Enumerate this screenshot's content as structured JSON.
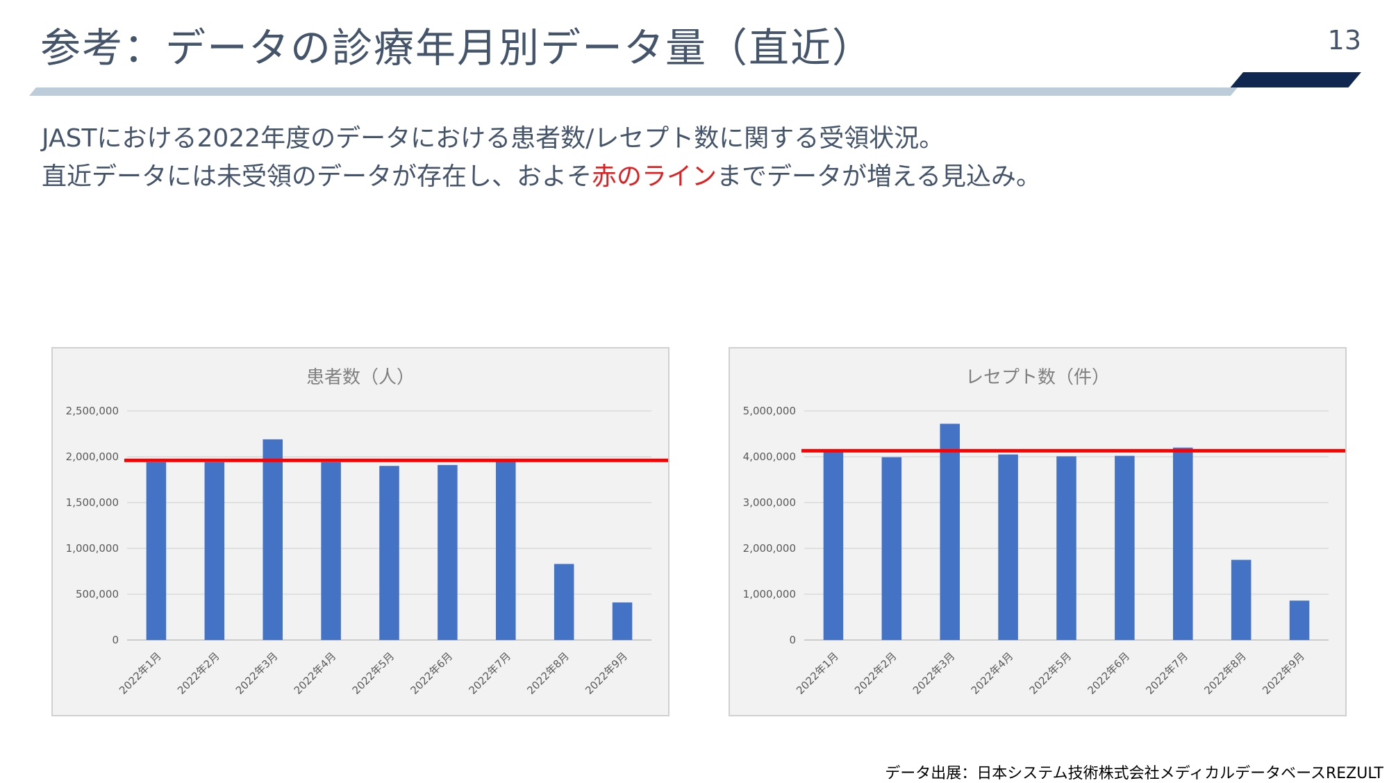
{
  "slide": {
    "title": "参考：データの診療年月別データ量（直近）",
    "page_number": "13",
    "line1": "JASTにおける2022年度のデータにおける患者数/レセプト数に関する受領状況。",
    "line2_before": "直近データには未受領のデータが存在し、およそ",
    "line2_highlight": "赤のライン",
    "line2_after": "までデータが増える見込み。",
    "source": "データ出展：日本システム技術株式会社メディカルデータベースREZULT"
  },
  "colors": {
    "bar": "#4472C4",
    "reference_line": "#FF0000",
    "highlight_text": "#E02020",
    "panel_bg": "#F2F2F2"
  },
  "chart_data": [
    {
      "type": "bar",
      "title": "患者数（人）",
      "categories": [
        "2022年1月",
        "2022年2月",
        "2022年3月",
        "2022年4月",
        "2022年5月",
        "2022年6月",
        "2022年7月",
        "2022年8月",
        "2022年9月"
      ],
      "values": [
        1940000,
        1940000,
        2190000,
        1940000,
        1900000,
        1910000,
        1950000,
        830000,
        410000
      ],
      "ylim": [
        0,
        2500000
      ],
      "y_ticks": [
        0,
        500000,
        1000000,
        1500000,
        2000000,
        2500000
      ],
      "y_tick_labels": [
        "0",
        "500,000",
        "1,000,000",
        "1,500,000",
        "2,000,000",
        "2,500,000"
      ],
      "reference_line": 1960000,
      "grid": true,
      "legend": "none"
    },
    {
      "type": "bar",
      "title": "レセプト数（件）",
      "categories": [
        "2022年1月",
        "2022年2月",
        "2022年3月",
        "2022年4月",
        "2022年5月",
        "2022年6月",
        "2022年7月",
        "2022年8月",
        "2022年9月"
      ],
      "values": [
        4100000,
        3990000,
        4720000,
        4050000,
        4010000,
        4020000,
        4200000,
        1750000,
        860000
      ],
      "ylim": [
        0,
        5000000
      ],
      "y_ticks": [
        0,
        1000000,
        2000000,
        3000000,
        4000000,
        5000000
      ],
      "y_tick_labels": [
        "0",
        "1,000,000",
        "2,000,000",
        "3,000,000",
        "4,000,000",
        "5,000,000"
      ],
      "reference_line": 4130000,
      "grid": true,
      "legend": "none"
    }
  ]
}
